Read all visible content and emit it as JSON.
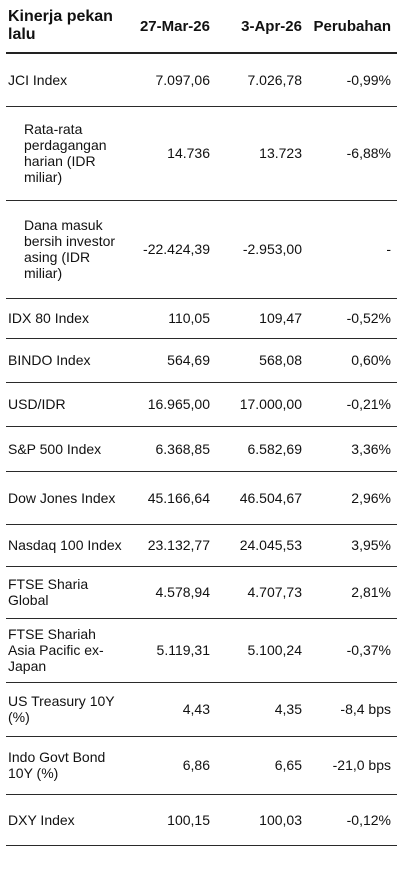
{
  "header": {
    "title": "Kinerja pekan lalu",
    "col1": "27-Mar-26",
    "col2": "3-Apr-26",
    "col3": "Perubahan"
  },
  "rows": [
    {
      "label": "JCI Index",
      "v1": "7.097,06",
      "v2": "7.026,78",
      "chg": "-0,99%",
      "sub": false
    },
    {
      "label": "Rata-rata perdagangan harian (IDR miliar)",
      "v1": "14.736",
      "v2": "13.723",
      "chg": "-6,88%",
      "sub": true
    },
    {
      "label": "Dana masuk bersih investor asing (IDR miliar)",
      "v1": "-22.424,39",
      "v2": "-2.953,00",
      "chg": "-",
      "sub": true
    },
    {
      "label": "IDX 80 Index",
      "v1": "110,05",
      "v2": "109,47",
      "chg": "-0,52%",
      "sub": false
    },
    {
      "label": "BINDO Index",
      "v1": "564,69",
      "v2": "568,08",
      "chg": "0,60%",
      "sub": false
    },
    {
      "label": "USD/IDR",
      "v1": "16.965,00",
      "v2": "17.000,00",
      "chg": "-0,21%",
      "sub": false
    },
    {
      "label": "S&P 500 Index",
      "v1": "6.368,85",
      "v2": "6.582,69",
      "chg": "3,36%",
      "sub": false
    },
    {
      "label": "Dow Jones Index",
      "v1": "45.166,64",
      "v2": "46.504,67",
      "chg": "2,96%",
      "sub": false
    },
    {
      "label": "Nasdaq 100 Index",
      "v1": "23.132,77",
      "v2": "24.045,53",
      "chg": "3,95%",
      "sub": false
    },
    {
      "label": "FTSE Sharia Global",
      "v1": "4.578,94",
      "v2": "4.707,73",
      "chg": "2,81%",
      "sub": false
    },
    {
      "label": "FTSE Shariah Asia Pacific ex-Japan",
      "v1": "5.119,31",
      "v2": "5.100,24",
      "chg": "-0,37%",
      "sub": false
    },
    {
      "label": "US Treasury 10Y (%)",
      "v1": "4,43",
      "v2": "4,35",
      "chg": "-8,4 bps",
      "sub": false
    },
    {
      "label": "Indo Govt Bond 10Y (%)",
      "v1": "6,86",
      "v2": "6,65",
      "chg": "-21,0 bps",
      "sub": false
    },
    {
      "label": "DXY Index",
      "v1": "100,15",
      "v2": "100,03",
      "chg": "-0,12%",
      "sub": false
    }
  ]
}
